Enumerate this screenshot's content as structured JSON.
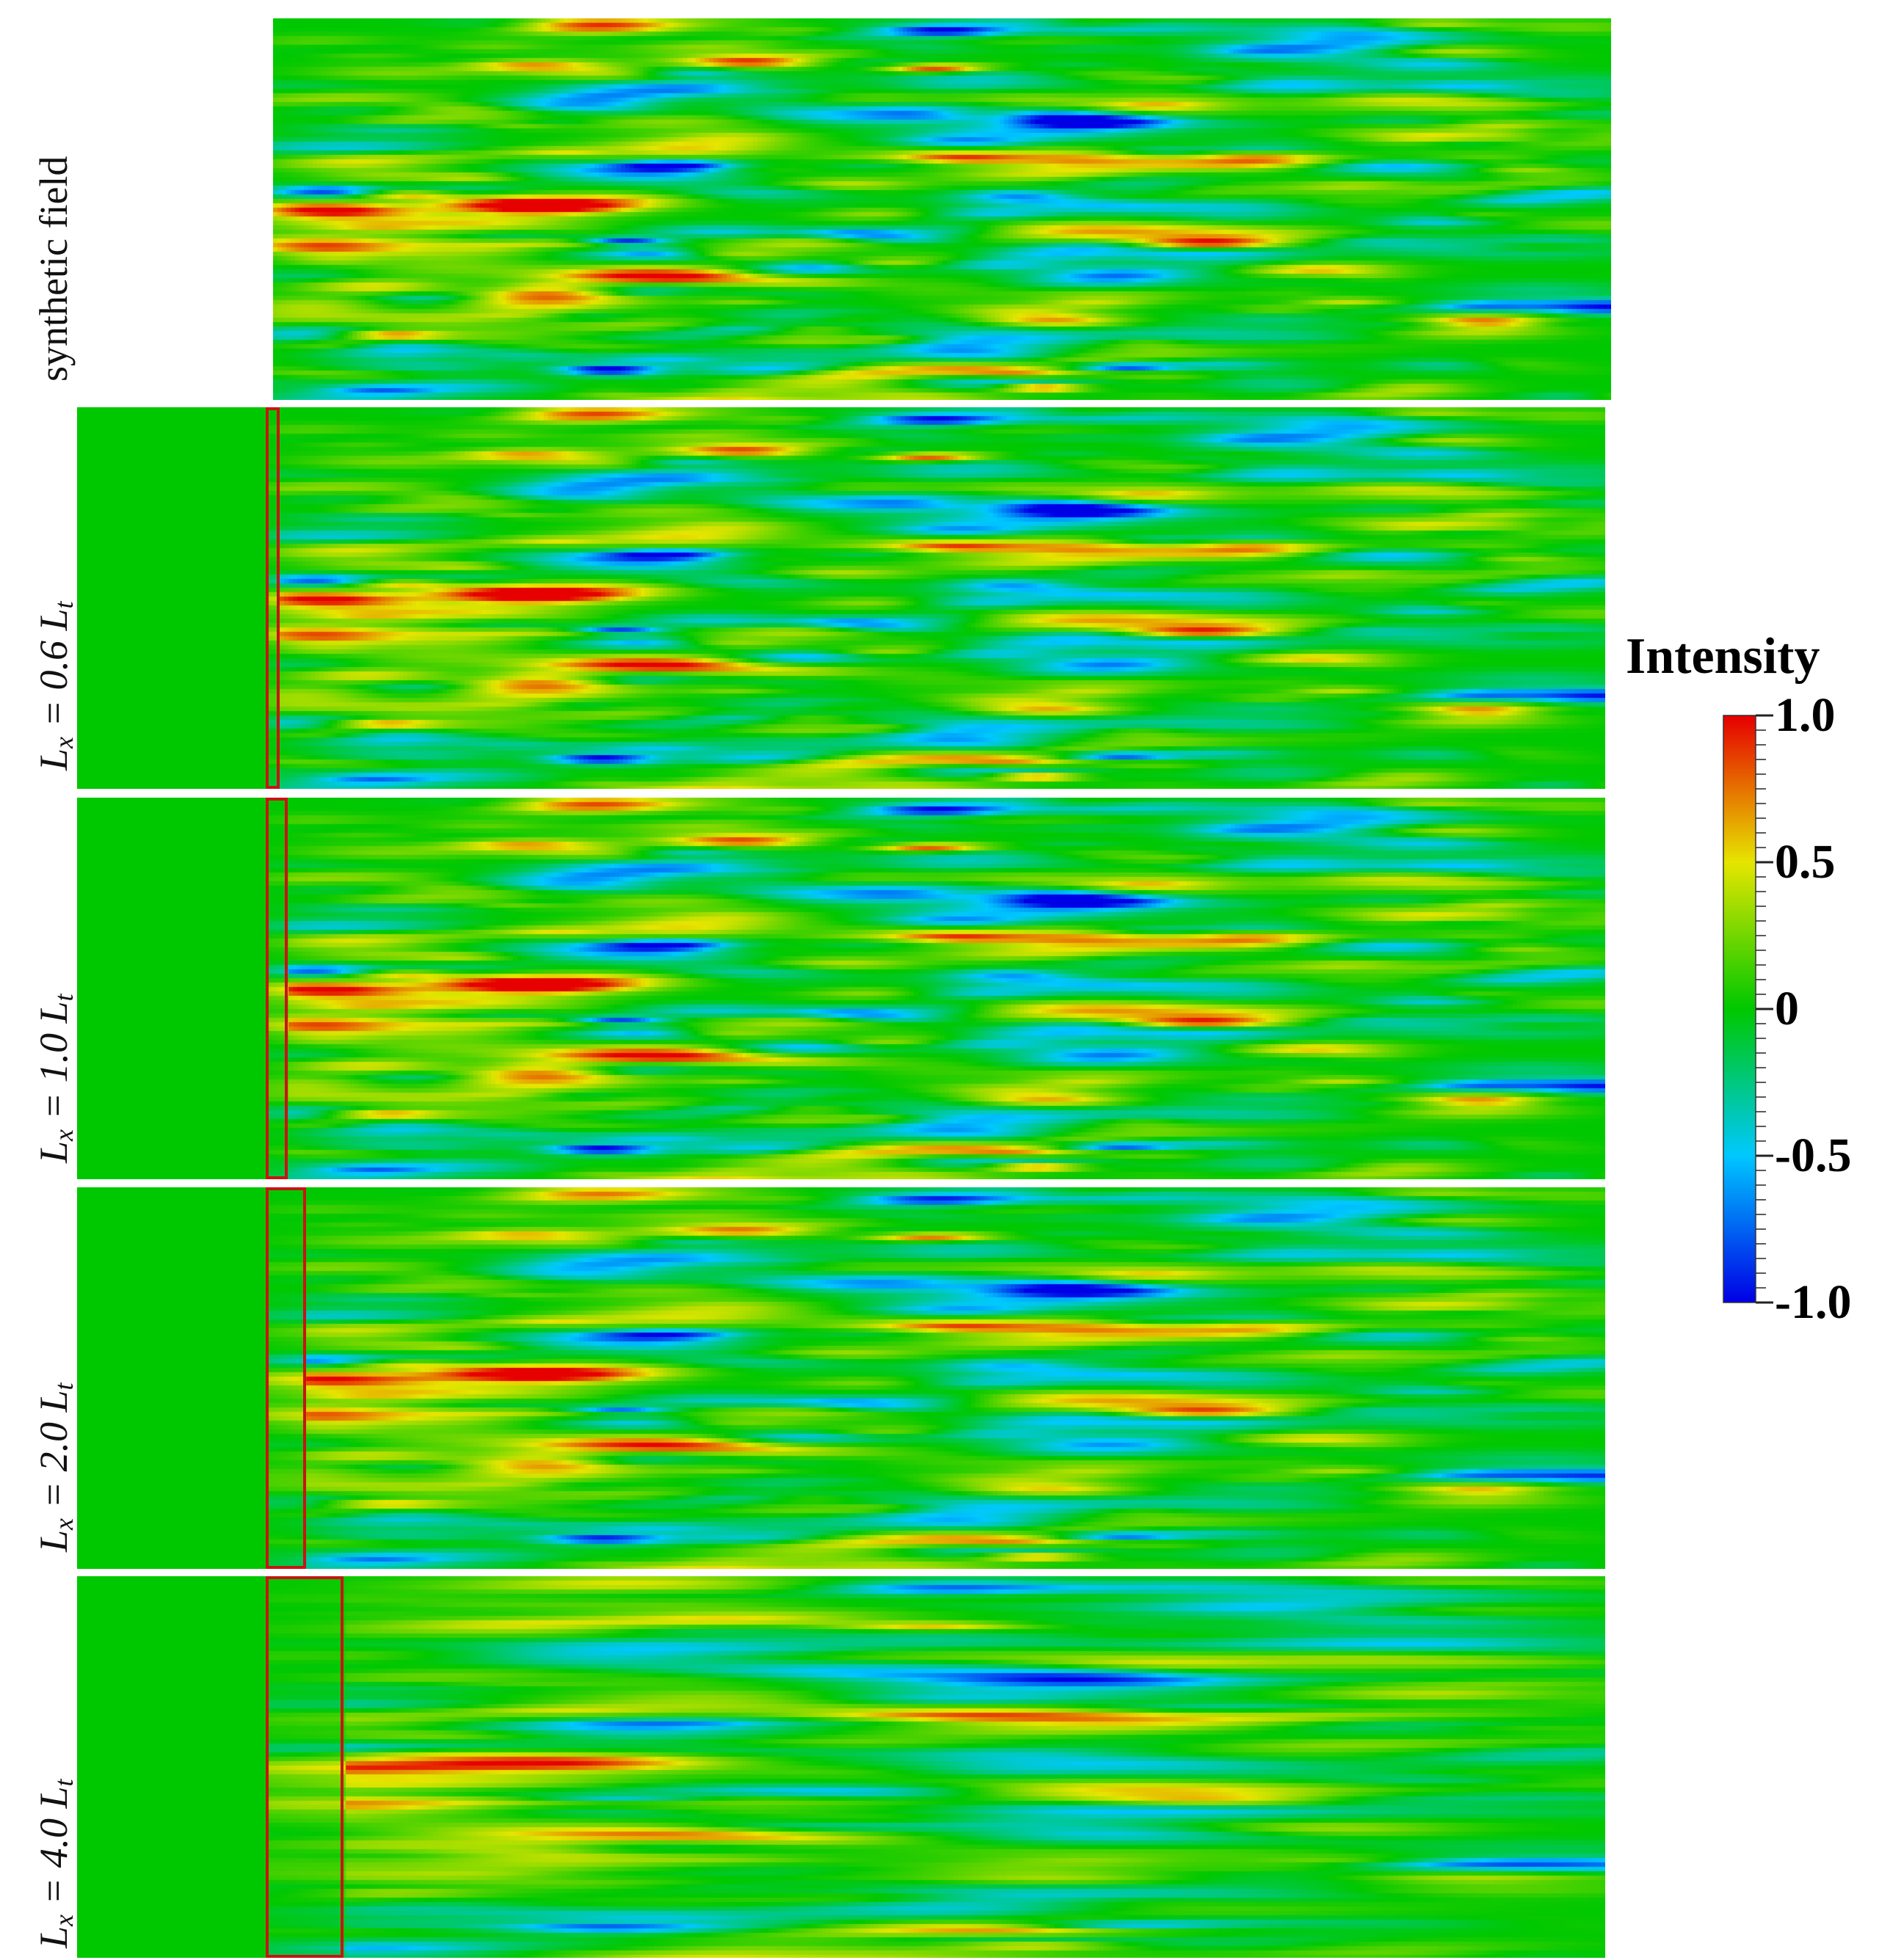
{
  "chart_data": {
    "type": "heatmap",
    "title": "",
    "panels": [
      {
        "label": "synthetic field",
        "inflow_region": false
      },
      {
        "label": "L_x = 0.6 L_t",
        "lx_over_lt": 0.6,
        "inflow_region": true
      },
      {
        "label": "L_x = 1.0 L_t",
        "lx_over_lt": 1.0,
        "inflow_region": true
      },
      {
        "label": "L_x = 2.0 L_t",
        "lx_over_lt": 2.0,
        "inflow_region": true
      },
      {
        "label": "L_x = 4.0 L_t",
        "lx_over_lt": 4.0,
        "inflow_region": true
      }
    ],
    "colorbar": {
      "title": "Intensity",
      "range": [
        -1.0,
        1.0
      ],
      "ticks": [
        {
          "value": 1.0,
          "label": "1.0"
        },
        {
          "value": 0.5,
          "label": "0.5"
        },
        {
          "value": 0,
          "label": "0"
        },
        {
          "value": -0.5,
          "label": "-0.5"
        },
        {
          "value": -1.0,
          "label": "-1.0"
        }
      ],
      "colormap": "jet",
      "stops": [
        "#0000e6",
        "#00c8ff",
        "#00c800",
        "#e6e600",
        "#e60000"
      ]
    },
    "inflow_box_color": "#c81414"
  }
}
